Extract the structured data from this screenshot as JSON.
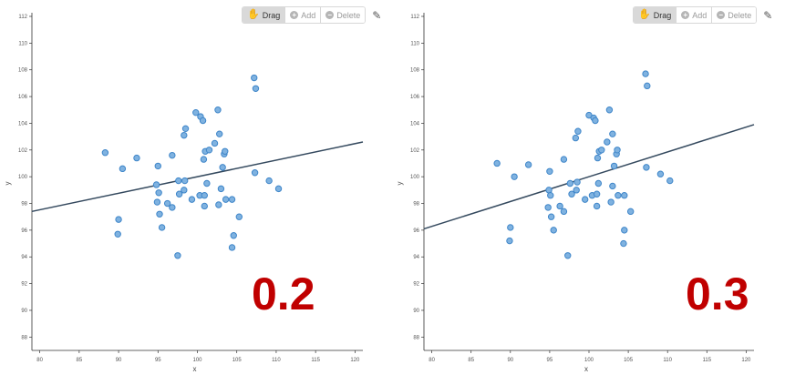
{
  "toolbar": {
    "drag_label": "Drag",
    "add_label": "Add",
    "delete_label": "Delete"
  },
  "colors": {
    "point_fill": "#7fb2e0",
    "point_stroke": "#3f86c9",
    "line": "#34495e",
    "label": "#c00000"
  },
  "chart_data": [
    {
      "type": "scatter",
      "label": "0.2",
      "xlabel": "x",
      "ylabel": "y",
      "xlim": [
        79,
        121
      ],
      "ylim": [
        87,
        112
      ],
      "xticks": [
        80,
        85,
        90,
        95,
        100,
        105,
        110,
        115,
        120
      ],
      "yticks": [
        88,
        90,
        92,
        94,
        96,
        98,
        100,
        102,
        104,
        106,
        108,
        110,
        112
      ],
      "regression": {
        "x": [
          79,
          121
        ],
        "y": [
          97.4,
          102.6
        ]
      },
      "points": [
        [
          88.3,
          101.8
        ],
        [
          90.5,
          100.6
        ],
        [
          92.3,
          101.4
        ],
        [
          90.0,
          96.8
        ],
        [
          89.9,
          95.7
        ],
        [
          95.0,
          100.8
        ],
        [
          94.8,
          99.4
        ],
        [
          95.1,
          98.8
        ],
        [
          94.9,
          98.1
        ],
        [
          95.2,
          97.2
        ],
        [
          95.5,
          96.2
        ],
        [
          96.2,
          98.0
        ],
        [
          96.8,
          97.7
        ],
        [
          96.8,
          101.6
        ],
        [
          97.5,
          94.1
        ],
        [
          97.7,
          98.7
        ],
        [
          97.6,
          99.7
        ],
        [
          98.3,
          99.0
        ],
        [
          98.4,
          99.7
        ],
        [
          98.3,
          103.1
        ],
        [
          98.5,
          103.6
        ],
        [
          99.8,
          104.8
        ],
        [
          100.4,
          104.5
        ],
        [
          100.7,
          104.2
        ],
        [
          99.3,
          98.3
        ],
        [
          100.3,
          98.6
        ],
        [
          100.9,
          98.6
        ],
        [
          101.2,
          99.5
        ],
        [
          100.9,
          97.8
        ],
        [
          100.8,
          101.3
        ],
        [
          101.0,
          101.9
        ],
        [
          101.5,
          102.0
        ],
        [
          102.2,
          102.5
        ],
        [
          102.6,
          105.0
        ],
        [
          102.8,
          103.2
        ],
        [
          103.2,
          100.7
        ],
        [
          103.4,
          101.7
        ],
        [
          103.5,
          101.9
        ],
        [
          102.7,
          97.9
        ],
        [
          103.0,
          99.1
        ],
        [
          103.6,
          98.3
        ],
        [
          104.4,
          98.3
        ],
        [
          104.6,
          95.6
        ],
        [
          104.4,
          94.7
        ],
        [
          105.3,
          97.0
        ],
        [
          107.2,
          107.4
        ],
        [
          107.4,
          106.6
        ],
        [
          107.3,
          100.3
        ],
        [
          109.1,
          99.7
        ],
        [
          110.3,
          99.1
        ]
      ]
    },
    {
      "type": "scatter",
      "label": "0.3",
      "xlabel": "x",
      "ylabel": "y",
      "xlim": [
        79,
        121
      ],
      "ylim": [
        87,
        112
      ],
      "xticks": [
        80,
        85,
        90,
        95,
        100,
        105,
        110,
        115,
        120
      ],
      "yticks": [
        88,
        90,
        92,
        94,
        96,
        98,
        100,
        102,
        104,
        106,
        108,
        110,
        112
      ],
      "regression": {
        "x": [
          79,
          121
        ],
        "y": [
          96.1,
          103.9
        ]
      },
      "points": [
        [
          88.3,
          101.0
        ],
        [
          90.5,
          100.0
        ],
        [
          92.3,
          100.9
        ],
        [
          90.0,
          96.2
        ],
        [
          89.9,
          95.2
        ],
        [
          95.0,
          100.4
        ],
        [
          94.9,
          99.0
        ],
        [
          95.1,
          98.6
        ],
        [
          94.8,
          97.7
        ],
        [
          95.2,
          97.0
        ],
        [
          95.5,
          96.0
        ],
        [
          96.3,
          97.8
        ],
        [
          96.8,
          97.4
        ],
        [
          96.8,
          101.3
        ],
        [
          97.3,
          94.1
        ],
        [
          97.8,
          98.7
        ],
        [
          97.6,
          99.5
        ],
        [
          98.4,
          99.0
        ],
        [
          98.5,
          99.6
        ],
        [
          98.3,
          102.9
        ],
        [
          98.6,
          103.4
        ],
        [
          100.0,
          104.6
        ],
        [
          100.6,
          104.4
        ],
        [
          100.8,
          104.2
        ],
        [
          99.5,
          98.3
        ],
        [
          100.4,
          98.6
        ],
        [
          101.0,
          98.7
        ],
        [
          101.2,
          99.5
        ],
        [
          101.0,
          97.8
        ],
        [
          101.1,
          101.4
        ],
        [
          101.3,
          101.9
        ],
        [
          101.6,
          102.0
        ],
        [
          102.3,
          102.6
        ],
        [
          102.6,
          105.0
        ],
        [
          103.0,
          103.2
        ],
        [
          103.2,
          100.8
        ],
        [
          103.5,
          101.7
        ],
        [
          103.6,
          102.0
        ],
        [
          102.8,
          98.1
        ],
        [
          103.0,
          99.3
        ],
        [
          103.7,
          98.6
        ],
        [
          104.5,
          98.6
        ],
        [
          104.5,
          96.0
        ],
        [
          104.4,
          95.0
        ],
        [
          105.3,
          97.4
        ],
        [
          107.2,
          107.7
        ],
        [
          107.4,
          106.8
        ],
        [
          107.3,
          100.7
        ],
        [
          109.1,
          100.2
        ],
        [
          110.3,
          99.7
        ]
      ]
    }
  ]
}
